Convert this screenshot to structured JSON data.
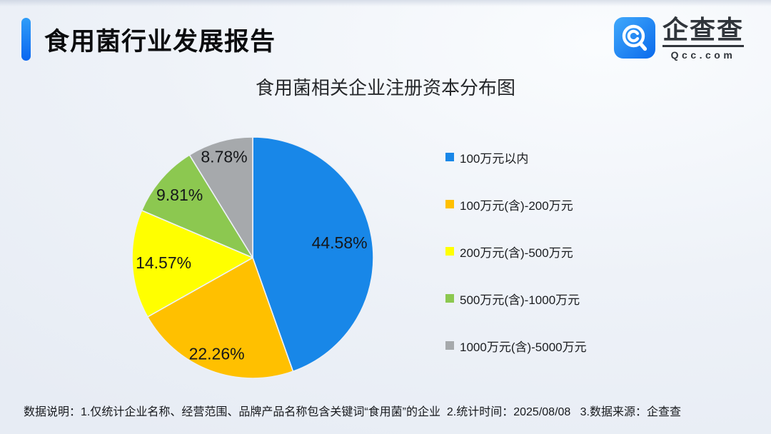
{
  "header": {
    "title": "食用菌行业发展报告",
    "accent_gradient": [
      "#2F9DF8",
      "#0A66F0"
    ]
  },
  "logo": {
    "name": "企查查",
    "domain": "Qcc.com",
    "icon": "qcc-magnifier-icon",
    "icon_gradient": [
      "#41A9FB",
      "#0A6AEC"
    ],
    "text_color": "#30353B"
  },
  "chart_data": {
    "type": "pie",
    "title": "食用菌相关企业注册资本分布图",
    "categories": [
      "100万元以内",
      "100万元(含)-200万元",
      "200万元(含)-500万元",
      "500万元(含)-1000万元",
      "1000万元(含)-5000万元"
    ],
    "values": [
      44.58,
      22.26,
      14.57,
      9.81,
      8.78
    ],
    "unit": "%",
    "colors": [
      "#1887E8",
      "#FFC000",
      "#FFFF00",
      "#8CC850",
      "#A6A9AC"
    ],
    "start_angle_deg": 0,
    "direction": "clockwise",
    "legend_position": "right",
    "data_labels": "inside",
    "label_color": "#15171A"
  },
  "footer": {
    "note": "数据说明：1.仅统计企业名称、经营范围、品牌产品名称包含关键词“食用菌”的企业  2.统计时间：2025/08/08   3.数据来源：企查查"
  }
}
